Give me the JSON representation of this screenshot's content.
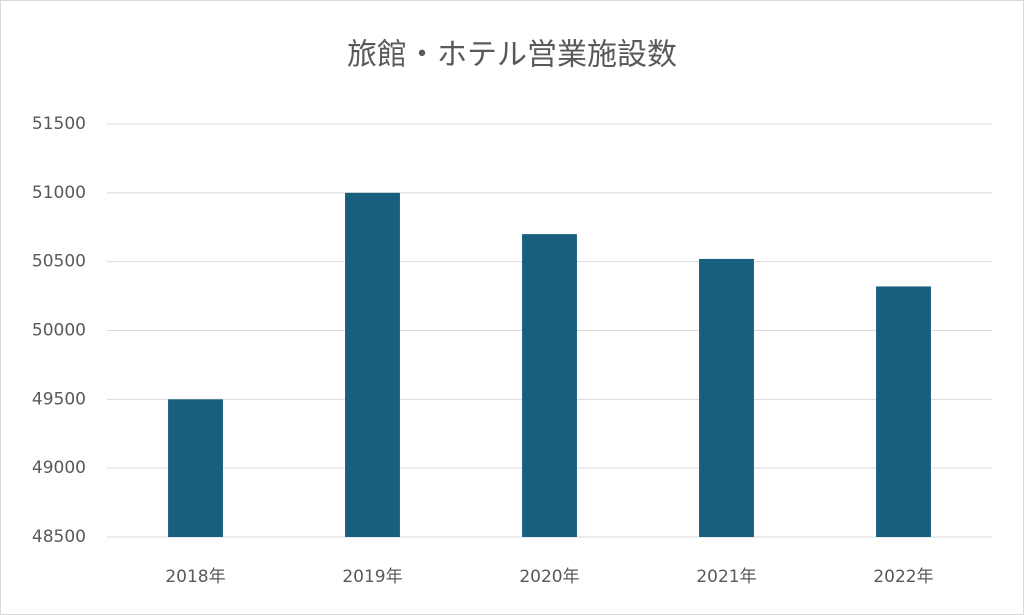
{
  "chart_data": {
    "type": "bar",
    "title": "旅館・ホテル営業施設数",
    "categories": [
      "2018年",
      "2019年",
      "2020年",
      "2021年",
      "2022年"
    ],
    "values": [
      49500,
      51000,
      50700,
      50520,
      50320
    ],
    "color": "#175e7f",
    "ylim": [
      48500,
      51500
    ],
    "yticks": [
      48500,
      49000,
      49500,
      50000,
      50500,
      51000,
      51500
    ],
    "grid": true
  }
}
